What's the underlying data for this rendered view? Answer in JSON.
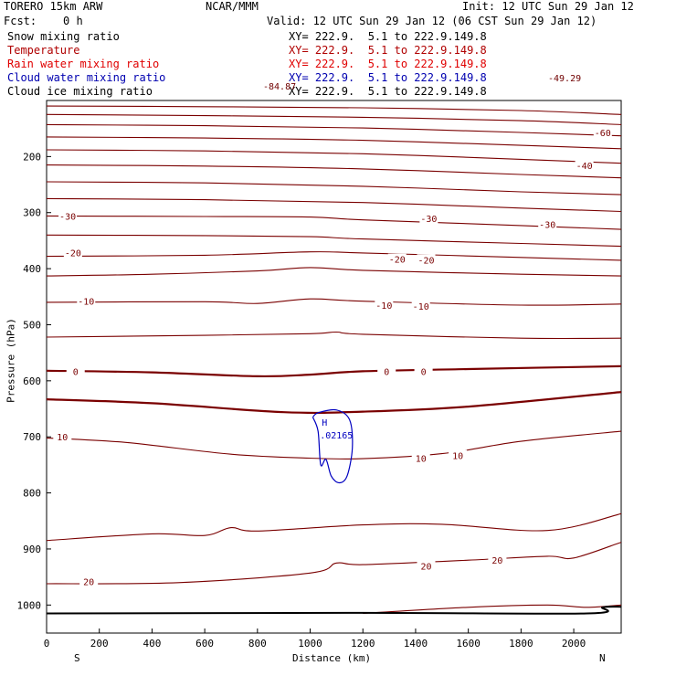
{
  "header": {
    "model": "TORERO  15km ARW",
    "center": "NCAR/MMM",
    "init": "Init: 12 UTC Sun 29 Jan 12",
    "fcst": "Fcst:    0 h",
    "valid": "Valid: 12 UTC Sun 29 Jan 12 (06 CST Sun 29 Jan 12)"
  },
  "legend": [
    {
      "field": "Snow mixing ratio",
      "xy": "XY= 222.9.  5.1 to 222.9.149.8",
      "color": "#000000"
    },
    {
      "field": "Temperature",
      "xy": "XY= 222.9.  5.1 to 222.9.149.8",
      "color": "#b00000"
    },
    {
      "field": "Rain water mixing ratio",
      "xy": "XY= 222.9.  5.1 to 222.9.149.8",
      "color": "#e00000"
    },
    {
      "field": "Cloud water mixing ratio",
      "xy": "XY= 222.9.  5.1 to 222.9.149.8",
      "color": "#0000b0"
    },
    {
      "field": "Cloud ice mixing ratio",
      "xy": "XY= 222.9.  5.1 to 222.9.149.8",
      "color": "#000000"
    }
  ],
  "corner_labels": {
    "left": "-84.87",
    "right": "-49.29"
  },
  "chart_data": {
    "type": "line",
    "xlabel": "Distance (km)",
    "ylabel": "Pressure (hPa)",
    "xlim": [
      0,
      2180
    ],
    "ylim": [
      1050,
      100
    ],
    "x_ticks": [
      0,
      200,
      400,
      600,
      800,
      1000,
      1200,
      1400,
      1600,
      1800,
      2000
    ],
    "y_ticks": [
      200,
      300,
      400,
      500,
      600,
      700,
      800,
      900,
      1000
    ],
    "x_end_labels": {
      "left": "S",
      "right": "N"
    },
    "temperature_contours": [
      {
        "level": -60,
        "points": [
          [
            0,
            110
          ],
          [
            600,
            111
          ],
          [
            1200,
            113
          ],
          [
            1800,
            118
          ],
          [
            2180,
            125
          ]
        ]
      },
      {
        "level": -60,
        "points": [
          [
            0,
            125
          ],
          [
            600,
            127
          ],
          [
            1200,
            130
          ],
          [
            1800,
            136
          ],
          [
            2180,
            143
          ]
        ]
      },
      {
        "level": -60,
        "points": [
          [
            0,
            143
          ],
          [
            600,
            145
          ],
          [
            1200,
            149
          ],
          [
            1800,
            157
          ],
          [
            2180,
            163
          ]
        ]
      },
      {
        "level": -50,
        "points": [
          [
            0,
            165
          ],
          [
            600,
            167
          ],
          [
            1200,
            171
          ],
          [
            1800,
            180
          ],
          [
            2180,
            186
          ]
        ]
      },
      {
        "level": -50,
        "points": [
          [
            0,
            188
          ],
          [
            600,
            190
          ],
          [
            1200,
            195
          ],
          [
            1800,
            205
          ],
          [
            2180,
            212
          ]
        ]
      },
      {
        "level": -40,
        "points": [
          [
            0,
            215
          ],
          [
            600,
            217
          ],
          [
            1200,
            222
          ],
          [
            1800,
            232
          ],
          [
            2180,
            238
          ]
        ]
      },
      {
        "level": -40,
        "points": [
          [
            0,
            245
          ],
          [
            600,
            247
          ],
          [
            1200,
            253
          ],
          [
            1800,
            263
          ],
          [
            2180,
            268
          ]
        ]
      },
      {
        "level": -30,
        "points": [
          [
            0,
            275
          ],
          [
            600,
            277
          ],
          [
            1200,
            282
          ],
          [
            1800,
            292
          ],
          [
            2180,
            298
          ]
        ]
      },
      {
        "level": -30,
        "points": [
          [
            0,
            306
          ],
          [
            600,
            307
          ],
          [
            1000,
            308
          ],
          [
            1200,
            313
          ],
          [
            1800,
            323
          ],
          [
            2180,
            330
          ]
        ]
      },
      {
        "level": -30,
        "points": [
          [
            0,
            340
          ],
          [
            600,
            341
          ],
          [
            1000,
            343
          ],
          [
            1200,
            347
          ],
          [
            1800,
            355
          ],
          [
            2180,
            360
          ]
        ]
      },
      {
        "level": -20,
        "points": [
          [
            0,
            378
          ],
          [
            600,
            376
          ],
          [
            1000,
            370
          ],
          [
            1200,
            372
          ],
          [
            1800,
            380
          ],
          [
            2180,
            385
          ]
        ]
      },
      {
        "level": -20,
        "points": [
          [
            0,
            413
          ],
          [
            400,
            410
          ],
          [
            800,
            404
          ],
          [
            1000,
            398
          ],
          [
            1200,
            403
          ],
          [
            1800,
            410
          ],
          [
            2180,
            413
          ]
        ]
      },
      {
        "level": -10,
        "points": [
          [
            0,
            460
          ],
          [
            600,
            459
          ],
          [
            800,
            462
          ],
          [
            1000,
            454
          ],
          [
            1200,
            458
          ],
          [
            1800,
            465
          ],
          [
            2180,
            463
          ]
        ]
      },
      {
        "level": -10,
        "points": [
          [
            0,
            522
          ],
          [
            600,
            519
          ],
          [
            1000,
            516
          ],
          [
            1100,
            513
          ],
          [
            1200,
            517
          ],
          [
            1800,
            524
          ],
          [
            2180,
            524
          ]
        ]
      },
      {
        "level": 0,
        "points": [
          [
            0,
            582
          ],
          [
            400,
            585
          ],
          [
            800,
            592
          ],
          [
            1000,
            589
          ],
          [
            1200,
            583
          ],
          [
            1600,
            579
          ],
          [
            2180,
            574
          ]
        ]
      },
      {
        "level": 0,
        "points": [
          [
            0,
            633
          ],
          [
            400,
            640
          ],
          [
            900,
            656
          ],
          [
            1200,
            655
          ],
          [
            1600,
            646
          ],
          [
            2180,
            620
          ]
        ]
      },
      {
        "level": 10,
        "points": [
          [
            0,
            702
          ],
          [
            300,
            710
          ],
          [
            700,
            731
          ],
          [
            1000,
            738
          ],
          [
            1200,
            739
          ],
          [
            1500,
            730
          ],
          [
            1800,
            708
          ],
          [
            2180,
            690
          ]
        ]
      },
      {
        "level": 10,
        "points": [
          [
            0,
            885
          ],
          [
            400,
            873
          ],
          [
            600,
            876
          ],
          [
            700,
            862
          ],
          [
            800,
            868
          ],
          [
            1200,
            857
          ],
          [
            1500,
            856
          ],
          [
            1900,
            867
          ],
          [
            2180,
            837
          ]
        ]
      },
      {
        "level": 20,
        "points": [
          [
            0,
            962
          ],
          [
            500,
            960
          ],
          [
            1000,
            943
          ],
          [
            1100,
            925
          ],
          [
            1200,
            928
          ],
          [
            1600,
            920
          ],
          [
            1900,
            913
          ],
          [
            2000,
            916
          ],
          [
            2180,
            888
          ]
        ]
      },
      {
        "level": 20,
        "points": [
          [
            1200,
            1015
          ],
          [
            1600,
            1004
          ],
          [
            1900,
            1000
          ],
          [
            2050,
            1004
          ],
          [
            2180,
            1000
          ]
        ]
      }
    ],
    "contour_labels": [
      {
        "text": "-60",
        "x": 2110,
        "p": 157
      },
      {
        "text": "-40",
        "x": 2040,
        "p": 216
      },
      {
        "text": "-30",
        "x": 80,
        "p": 306
      },
      {
        "text": "-30",
        "x": 1450,
        "p": 310
      },
      {
        "text": "-30",
        "x": 1900,
        "p": 321
      },
      {
        "text": "-20",
        "x": 100,
        "p": 371
      },
      {
        "text": "-20",
        "x": 1330,
        "p": 383
      },
      {
        "text": "-20",
        "x": 1440,
        "p": 384
      },
      {
        "text": "-10",
        "x": 150,
        "p": 458
      },
      {
        "text": "-10",
        "x": 1280,
        "p": 465
      },
      {
        "text": "-10",
        "x": 1420,
        "p": 467
      },
      {
        "text": "0",
        "x": 110,
        "p": 583
      },
      {
        "text": "0",
        "x": 1290,
        "p": 583
      },
      {
        "text": "0",
        "x": 1430,
        "p": 583
      },
      {
        "text": "10",
        "x": 60,
        "p": 700
      },
      {
        "text": "10",
        "x": 1420,
        "p": 738
      },
      {
        "text": "10",
        "x": 1560,
        "p": 733
      },
      {
        "text": "20",
        "x": 1440,
        "p": 930
      },
      {
        "text": "20",
        "x": 1710,
        "p": 920
      },
      {
        "text": "20",
        "x": 160,
        "p": 958
      }
    ],
    "cloud_water": {
      "max_label": "H",
      "max_value": ".02165",
      "points": [
        [
          1010,
          665
        ],
        [
          1030,
          657
        ],
        [
          1100,
          652
        ],
        [
          1150,
          670
        ],
        [
          1160,
          720
        ],
        [
          1140,
          770
        ],
        [
          1110,
          782
        ],
        [
          1080,
          770
        ],
        [
          1060,
          740
        ],
        [
          1040,
          750
        ],
        [
          1030,
          690
        ],
        [
          1010,
          665
        ]
      ]
    },
    "surface": {
      "points": [
        [
          0,
          1015
        ],
        [
          1200,
          1014
        ],
        [
          2050,
          1015
        ],
        [
          2110,
          1004
        ],
        [
          2180,
          1003
        ]
      ]
    }
  }
}
